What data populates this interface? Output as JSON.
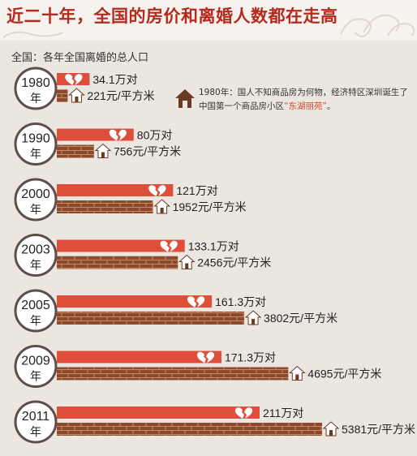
{
  "header": {
    "title": "近二十年，全国的房价和离婚人数都在走高",
    "subtitle": "全国：各年全国离婚的总人口"
  },
  "note": {
    "text": "1980年：国人不知商品房为何物，经济特区深圳诞生了中国第一个商品房小区",
    "highlight": "“东湖丽苑”",
    "end": "。"
  },
  "colors": {
    "title": "#b52a1e",
    "divorce_bar": "#de4f3b",
    "price_bar": "#8b4a2d",
    "brick_line": "#c98b62",
    "badge_fill": "#ffffff",
    "badge_ring": "#5e4d4d",
    "house_icon": "#6a3b22"
  },
  "icons": {
    "divorce": "broken-heart-icon",
    "price": "house-icon",
    "note": "house-icon"
  },
  "chart_data": {
    "type": "bar",
    "orientation": "horizontal",
    "categories": [
      "1980",
      "1990",
      "2000",
      "2003",
      "2005",
      "2009",
      "2011"
    ],
    "category_suffix": "年",
    "series": [
      {
        "name": "离婚人数",
        "values": [
          34.1,
          80,
          121,
          133.1,
          161.3,
          171.3,
          211
        ],
        "labels": [
          "34.1万对",
          "80万对",
          "121万对",
          "133.1万对",
          "161.3万对",
          "171.3万对",
          "211万对"
        ]
      },
      {
        "name": "房价",
        "values": [
          221,
          756,
          1952,
          2456,
          3802,
          4695,
          5381
        ],
        "labels": [
          "221元/平方米",
          "756元/平方米",
          "1952元/平方米",
          "2456元/平方米",
          "3802元/平方米",
          "4695元/平方米",
          "5381元/平方米"
        ]
      }
    ]
  }
}
